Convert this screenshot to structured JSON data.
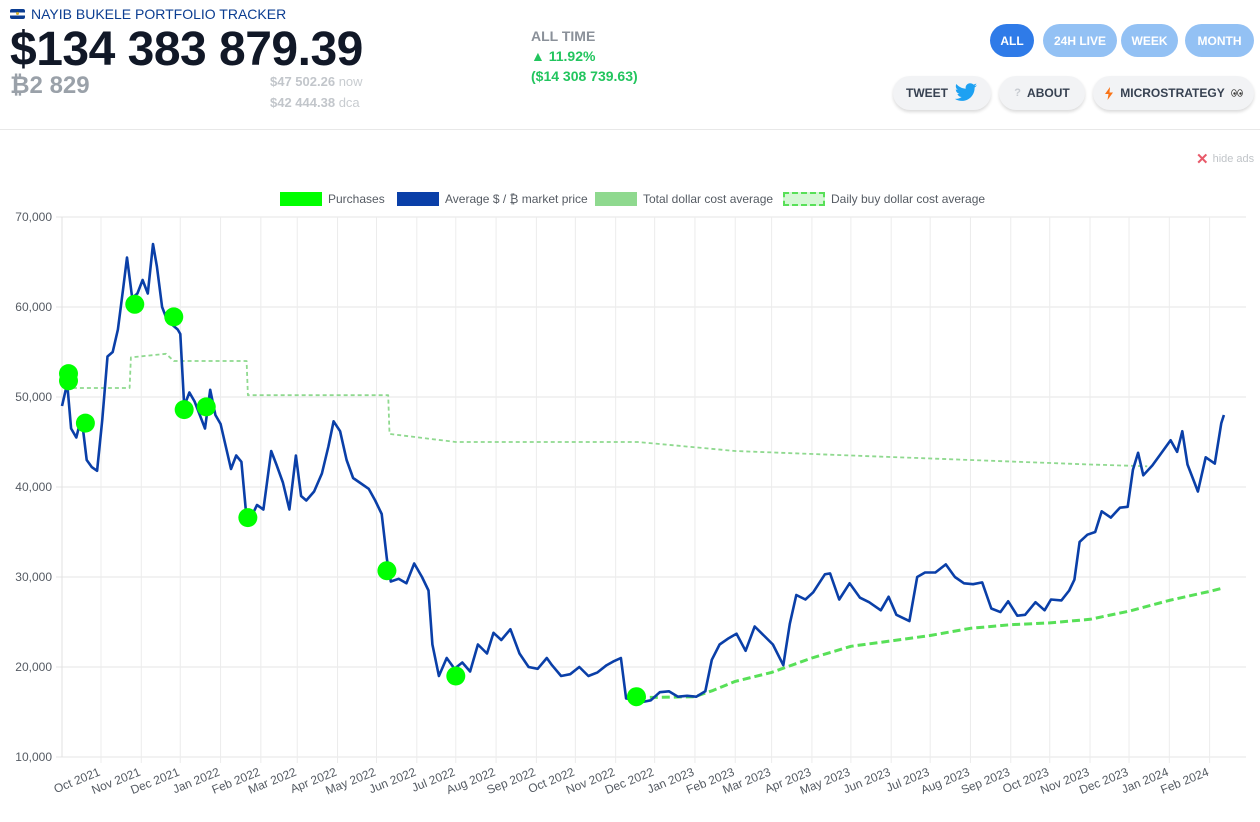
{
  "header": {
    "brand": "NAYIB BUKELE PORTFOLIO TRACKER",
    "total_value": "$134 383 879.39",
    "btc_holdings": "₿2 829",
    "price_now": "$47 502.26",
    "price_now_label": "now",
    "price_dca": "$42 444.38",
    "price_dca_label": "dca",
    "alltime_label": "ALL TIME",
    "alltime_pct": "▲ 11.92%",
    "alltime_gain": "($14 308 739.63)"
  },
  "range_tabs": [
    {
      "label": "ALL",
      "active": true
    },
    {
      "label": "24H LIVE",
      "active": false
    },
    {
      "label": "WEEK",
      "active": false
    },
    {
      "label": "MONTH",
      "active": false
    }
  ],
  "actions": {
    "tweet": "TWEET",
    "about": "ABOUT",
    "microstrategy": "MICROSTRATEGY",
    "about_icon": "question-icon",
    "tweet_icon": "twitter-bird-icon",
    "microstrategy_icon": "lightning-icon"
  },
  "hide_ads": "hide ads",
  "colors": {
    "accent": "#2f7be8",
    "accent_light": "#93c1f4",
    "purchase": "#00ff00",
    "price_line": "#0a3fa8",
    "total_dca": "#8fd98f",
    "daily_dca": "#58e058"
  },
  "chart_data": {
    "type": "line",
    "legend": [
      "Purchases",
      "Average $ / ₿ market price",
      "Total dollar cost average",
      "Daily buy dollar cost average"
    ],
    "x_ticks": [
      "Oct 2021",
      "Nov 2021",
      "Dec 2021",
      "Jan 2022",
      "Feb 2022",
      "Mar 2022",
      "Apr 2022",
      "May 2022",
      "Jun 2022",
      "Jul 2022",
      "Aug 2022",
      "Sep 2022",
      "Oct 2022",
      "Nov 2022",
      "Dec 2022",
      "Jan 2023",
      "Feb 2023",
      "Mar 2023",
      "Apr 2023",
      "May 2023",
      "Jun 2023",
      "Jul 2023",
      "Aug 2023",
      "Sep 2023",
      "Oct 2023",
      "Nov 2023",
      "Dec 2023",
      "Jan 2024",
      "Feb 2024"
    ],
    "y_ticks": [
      "10,000",
      "20,000",
      "30,000",
      "40,000",
      "50,000",
      "60,000",
      "70,000"
    ],
    "ylim": [
      10000,
      70000
    ],
    "xlim": [
      "2021-09-01",
      "2024-02-29"
    ],
    "series": [
      {
        "name": "Average $ / ₿ market price",
        "points": [
          [
            "2021-09-01",
            49000
          ],
          [
            "2021-09-05",
            51500
          ],
          [
            "2021-09-08",
            46500
          ],
          [
            "2021-09-12",
            45500
          ],
          [
            "2021-09-16",
            47800
          ],
          [
            "2021-09-20",
            43000
          ],
          [
            "2021-09-24",
            42200
          ],
          [
            "2021-09-28",
            41800
          ],
          [
            "2021-10-02",
            47500
          ],
          [
            "2021-10-06",
            54500
          ],
          [
            "2021-10-10",
            55000
          ],
          [
            "2021-10-14",
            57500
          ],
          [
            "2021-10-18",
            62000
          ],
          [
            "2021-10-21",
            65500
          ],
          [
            "2021-10-25",
            61000
          ],
          [
            "2021-10-29",
            61500
          ],
          [
            "2021-11-02",
            63000
          ],
          [
            "2021-11-06",
            61500
          ],
          [
            "2021-11-10",
            67000
          ],
          [
            "2021-11-13",
            64500
          ],
          [
            "2021-11-17",
            60000
          ],
          [
            "2021-11-21",
            58500
          ],
          [
            "2021-11-25",
            58000
          ],
          [
            "2021-11-29",
            57500
          ],
          [
            "2021-12-01",
            57000
          ],
          [
            "2021-12-04",
            49000
          ],
          [
            "2021-12-08",
            50500
          ],
          [
            "2021-12-12",
            49500
          ],
          [
            "2021-12-16",
            48000
          ],
          [
            "2021-12-20",
            46500
          ],
          [
            "2021-12-24",
            50800
          ],
          [
            "2021-12-28",
            48000
          ],
          [
            "2022-01-01",
            47000
          ],
          [
            "2022-01-05",
            44500
          ],
          [
            "2022-01-09",
            42000
          ],
          [
            "2022-01-13",
            43500
          ],
          [
            "2022-01-17",
            42800
          ],
          [
            "2022-01-21",
            36500
          ],
          [
            "2022-01-25",
            36800
          ],
          [
            "2022-01-29",
            38000
          ],
          [
            "2022-02-03",
            37500
          ],
          [
            "2022-02-09",
            44000
          ],
          [
            "2022-02-13",
            42500
          ],
          [
            "2022-02-18",
            40500
          ],
          [
            "2022-02-23",
            37500
          ],
          [
            "2022-02-28",
            43500
          ],
          [
            "2022-03-04",
            39000
          ],
          [
            "2022-03-08",
            38500
          ],
          [
            "2022-03-14",
            39500
          ],
          [
            "2022-03-20",
            41500
          ],
          [
            "2022-03-25",
            44500
          ],
          [
            "2022-03-29",
            47300
          ],
          [
            "2022-04-03",
            46200
          ],
          [
            "2022-04-08",
            43000
          ],
          [
            "2022-04-13",
            41000
          ],
          [
            "2022-04-18",
            40500
          ],
          [
            "2022-04-25",
            39800
          ],
          [
            "2022-04-30",
            38500
          ],
          [
            "2022-05-05",
            37000
          ],
          [
            "2022-05-09",
            32000
          ],
          [
            "2022-05-12",
            29500
          ],
          [
            "2022-05-18",
            29800
          ],
          [
            "2022-05-24",
            29300
          ],
          [
            "2022-05-30",
            31500
          ],
          [
            "2022-06-05",
            30000
          ],
          [
            "2022-06-10",
            28500
          ],
          [
            "2022-06-13",
            22500
          ],
          [
            "2022-06-18",
            19000
          ],
          [
            "2022-06-24",
            21000
          ],
          [
            "2022-06-30",
            19800
          ],
          [
            "2022-07-06",
            20500
          ],
          [
            "2022-07-12",
            19500
          ],
          [
            "2022-07-18",
            22500
          ],
          [
            "2022-07-25",
            21500
          ],
          [
            "2022-07-30",
            23800
          ],
          [
            "2022-08-05",
            23000
          ],
          [
            "2022-08-12",
            24200
          ],
          [
            "2022-08-19",
            21500
          ],
          [
            "2022-08-26",
            20000
          ],
          [
            "2022-09-02",
            19800
          ],
          [
            "2022-09-09",
            21000
          ],
          [
            "2022-09-13",
            20200
          ],
          [
            "2022-09-20",
            19000
          ],
          [
            "2022-09-27",
            19200
          ],
          [
            "2022-10-04",
            20000
          ],
          [
            "2022-10-11",
            19000
          ],
          [
            "2022-10-18",
            19400
          ],
          [
            "2022-10-25",
            20200
          ],
          [
            "2022-10-30",
            20600
          ],
          [
            "2022-11-05",
            21000
          ],
          [
            "2022-11-09",
            16500
          ],
          [
            "2022-11-14",
            16400
          ],
          [
            "2022-11-21",
            16100
          ],
          [
            "2022-11-28",
            16300
          ],
          [
            "2022-12-05",
            17200
          ],
          [
            "2022-12-12",
            17300
          ],
          [
            "2022-12-19",
            16700
          ],
          [
            "2022-12-26",
            16800
          ],
          [
            "2023-01-02",
            16700
          ],
          [
            "2023-01-09",
            17300
          ],
          [
            "2023-01-14",
            20800
          ],
          [
            "2023-01-20",
            22500
          ],
          [
            "2023-01-27",
            23200
          ],
          [
            "2023-02-02",
            23700
          ],
          [
            "2023-02-09",
            21800
          ],
          [
            "2023-02-16",
            24500
          ],
          [
            "2023-02-23",
            23500
          ],
          [
            "2023-03-02",
            22500
          ],
          [
            "2023-03-10",
            20200
          ],
          [
            "2023-03-15",
            24800
          ],
          [
            "2023-03-20",
            28000
          ],
          [
            "2023-03-27",
            27500
          ],
          [
            "2023-04-02",
            28300
          ],
          [
            "2023-04-11",
            30300
          ],
          [
            "2023-04-15",
            30400
          ],
          [
            "2023-04-22",
            27500
          ],
          [
            "2023-04-30",
            29300
          ],
          [
            "2023-05-08",
            27700
          ],
          [
            "2023-05-15",
            27200
          ],
          [
            "2023-05-24",
            26300
          ],
          [
            "2023-05-30",
            27800
          ],
          [
            "2023-06-05",
            25800
          ],
          [
            "2023-06-15",
            25100
          ],
          [
            "2023-06-21",
            30000
          ],
          [
            "2023-06-27",
            30500
          ],
          [
            "2023-07-05",
            30500
          ],
          [
            "2023-07-13",
            31400
          ],
          [
            "2023-07-20",
            30000
          ],
          [
            "2023-07-27",
            29300
          ],
          [
            "2023-08-03",
            29200
          ],
          [
            "2023-08-10",
            29400
          ],
          [
            "2023-08-17",
            26500
          ],
          [
            "2023-08-24",
            26100
          ],
          [
            "2023-08-30",
            27300
          ],
          [
            "2023-09-06",
            25700
          ],
          [
            "2023-09-12",
            25800
          ],
          [
            "2023-09-20",
            27200
          ],
          [
            "2023-09-27",
            26300
          ],
          [
            "2023-10-02",
            27500
          ],
          [
            "2023-10-10",
            27400
          ],
          [
            "2023-10-16",
            28500
          ],
          [
            "2023-10-20",
            29700
          ],
          [
            "2023-10-24",
            33900
          ],
          [
            "2023-10-30",
            34700
          ],
          [
            "2023-11-05",
            35000
          ],
          [
            "2023-11-10",
            37300
          ],
          [
            "2023-11-17",
            36600
          ],
          [
            "2023-11-24",
            37700
          ],
          [
            "2023-11-30",
            37800
          ],
          [
            "2023-12-04",
            41900
          ],
          [
            "2023-12-08",
            43800
          ],
          [
            "2023-12-12",
            41300
          ],
          [
            "2023-12-19",
            42400
          ],
          [
            "2023-12-25",
            43600
          ],
          [
            "2024-01-02",
            45200
          ],
          [
            "2024-01-07",
            43900
          ],
          [
            "2024-01-11",
            46200
          ],
          [
            "2024-01-15",
            42500
          ],
          [
            "2024-01-23",
            39500
          ],
          [
            "2024-01-29",
            43300
          ],
          [
            "2024-02-05",
            42600
          ],
          [
            "2024-02-10",
            47100
          ],
          [
            "2024-02-12",
            48000
          ]
        ]
      },
      {
        "name": "Total dollar cost average",
        "points": [
          [
            "2021-09-04",
            51000
          ],
          [
            "2021-10-23",
            51000
          ],
          [
            "2021-10-24",
            54400
          ],
          [
            "2021-11-20",
            54800
          ],
          [
            "2021-11-26",
            54000
          ],
          [
            "2022-01-21",
            54000
          ],
          [
            "2022-01-22",
            50200
          ],
          [
            "2022-05-10",
            50200
          ],
          [
            "2022-05-11",
            45900
          ],
          [
            "2022-07-01",
            45000
          ],
          [
            "2022-11-18",
            45000
          ],
          [
            "2023-02-01",
            44000
          ],
          [
            "2023-05-01",
            43500
          ],
          [
            "2023-08-01",
            43000
          ],
          [
            "2023-11-01",
            42500
          ],
          [
            "2023-12-15",
            42300
          ]
        ]
      },
      {
        "name": "Daily buy dollar cost average",
        "points": [
          [
            "2022-11-18",
            16600
          ],
          [
            "2022-12-15",
            16650
          ],
          [
            "2023-01-01",
            16700
          ],
          [
            "2023-01-15",
            17400
          ],
          [
            "2023-02-01",
            18400
          ],
          [
            "2023-03-01",
            19400
          ],
          [
            "2023-04-01",
            21000
          ],
          [
            "2023-05-01",
            22300
          ],
          [
            "2023-06-01",
            22900
          ],
          [
            "2023-07-01",
            23500
          ],
          [
            "2023-08-01",
            24300
          ],
          [
            "2023-09-01",
            24700
          ],
          [
            "2023-10-01",
            24900
          ],
          [
            "2023-11-01",
            25300
          ],
          [
            "2023-12-01",
            26200
          ],
          [
            "2024-01-01",
            27400
          ],
          [
            "2024-02-01",
            28400
          ],
          [
            "2024-02-12",
            28800
          ]
        ]
      }
    ],
    "purchases": [
      [
        "2021-09-06",
        52600
      ],
      [
        "2021-09-06",
        51800
      ],
      [
        "2021-09-19",
        47100
      ],
      [
        "2021-10-27",
        60300
      ],
      [
        "2021-11-26",
        58900
      ],
      [
        "2021-12-04",
        48600
      ],
      [
        "2021-12-21",
        48900
      ],
      [
        "2022-01-22",
        36600
      ],
      [
        "2022-05-09",
        30700
      ],
      [
        "2022-07-01",
        19000
      ],
      [
        "2022-11-17",
        16700
      ]
    ]
  }
}
